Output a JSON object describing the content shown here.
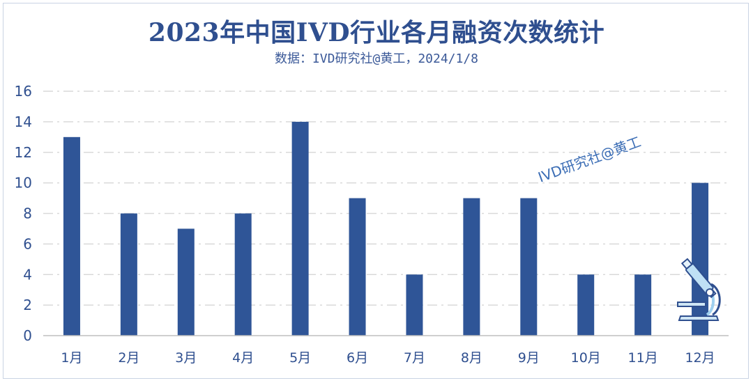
{
  "chart_data": {
    "type": "bar",
    "title": "2023年中国IVD行业各月融资次数统计",
    "subtitle": "数据：IVD研究社@黄工，2024/1/8",
    "categories": [
      "1月",
      "2月",
      "3月",
      "4月",
      "5月",
      "6月",
      "7月",
      "8月",
      "9月",
      "10月",
      "11月",
      "12月"
    ],
    "values": [
      13,
      8,
      7,
      8,
      14,
      9,
      4,
      9,
      9,
      4,
      4,
      10
    ],
    "ylim": [
      0,
      16
    ],
    "yticks": [
      0,
      2,
      4,
      6,
      8,
      10,
      12,
      14,
      16
    ],
    "xlabel": "",
    "ylabel": "",
    "grid": true,
    "bar_color": "#2f5597",
    "grid_color": "#d9d9d9"
  },
  "watermark": "IVD研究社@黄工",
  "decoration_icon": "microscope-icon"
}
